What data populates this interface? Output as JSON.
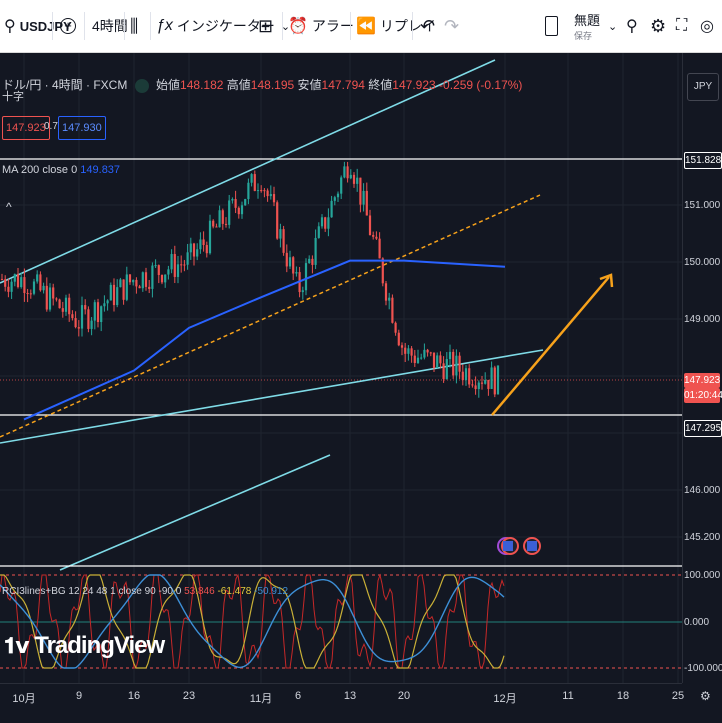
{
  "toolbar": {
    "symbol": "USDJPY",
    "interval": "4時間",
    "indicators_label": "インジケーター",
    "alert_label": "アラート",
    "replay_label": "リプレイ",
    "layout_name": "無題",
    "save_label": "保存"
  },
  "legend": {
    "title": "ドル/円 · 4時間 · FXCM",
    "crosshair_label": "十字",
    "open_label": "始値",
    "open": "148.182",
    "high_label": "高値",
    "high": "148.195",
    "low_label": "安値",
    "low": "147.794",
    "close_label": "終値",
    "close": "147.923",
    "change": "-0.259 (-0.17%)",
    "bid": "147.923",
    "spread": "0.7",
    "ask": "147.930"
  },
  "ma_legend": {
    "name": "MA 200 close 0",
    "value": "149.837"
  },
  "rci_legend": {
    "name": "RCI3lines+BG 12 24 48 1 close 90 -90 0",
    "v1": "53.846",
    "v2": "-61.478",
    "v3": "-50.912"
  },
  "price_axis": {
    "currency": "JPY",
    "labels": [
      "151.828",
      "151.000",
      "150.000",
      "149.000",
      "147.923",
      "01:20:44",
      "147.295",
      "146.000",
      "145.200"
    ],
    "rci_labels": [
      "100.000",
      "0.000",
      "-100.000"
    ]
  },
  "x_axis": [
    "10月",
    "9",
    "16",
    "23",
    "11月",
    "6",
    "13",
    "20",
    "12月",
    "11",
    "18",
    "25"
  ],
  "logo": "TradingView",
  "colors": {
    "up": "#26a69a",
    "down": "#ef5350",
    "ma": "#2962ff",
    "channel": "#7fdbe7",
    "arrow": "#f7a21b",
    "bg": "#131722"
  },
  "chart_data": {
    "type": "line",
    "title": "ドル/円 · 4時間 · FXCM",
    "y_range": [
      144.9,
      153.3
    ],
    "horizontal_levels": [
      151.828,
      147.295,
      147.923
    ],
    "close_path": [
      {
        "x": "10月",
        "y": 149.6
      },
      {
        "x": "9",
        "y": 148.9
      },
      {
        "x": "16",
        "y": 149.6
      },
      {
        "x": "23",
        "y": 149.9
      },
      {
        "x": "11月",
        "y": 151.3
      },
      {
        "x": "6",
        "y": 149.4
      },
      {
        "x": "13",
        "y": 151.6
      },
      {
        "x": "20",
        "y": 148.4
      },
      {
        "x": "12月",
        "y": 147.9
      }
    ],
    "ma200_path": [
      {
        "x": "10月",
        "y": 147.3
      },
      {
        "x": "16",
        "y": 148.1
      },
      {
        "x": "23",
        "y": 148.8
      },
      {
        "x": "11月",
        "y": 149.3
      },
      {
        "x": "13",
        "y": 149.9
      },
      {
        "x": "20",
        "y": 149.9
      },
      {
        "x": "12月",
        "y": 149.8
      }
    ]
  }
}
